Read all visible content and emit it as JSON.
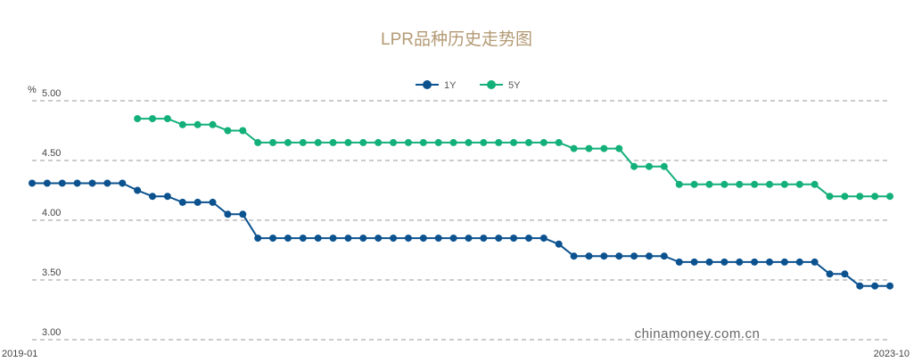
{
  "chart_data": {
    "type": "line",
    "title": "LPR品种历史走势图",
    "ylabel": "%",
    "ylim": [
      3.0,
      5.0
    ],
    "yticks": [
      "3.00",
      "3.50",
      "4.00",
      "4.50",
      "5.00"
    ],
    "x_start_label": "2019-01",
    "x_end_label": "2023-10",
    "grid": true,
    "legend_position": "top-center",
    "watermark": "chinamoney.com.cn",
    "x_count": 58,
    "series": [
      {
        "name": "1Y",
        "color": "#0b528f",
        "values": [
          4.31,
          4.31,
          4.31,
          4.31,
          4.31,
          4.31,
          4.31,
          4.25,
          4.2,
          4.2,
          4.15,
          4.15,
          4.15,
          4.05,
          4.05,
          3.85,
          3.85,
          3.85,
          3.85,
          3.85,
          3.85,
          3.85,
          3.85,
          3.85,
          3.85,
          3.85,
          3.85,
          3.85,
          3.85,
          3.85,
          3.85,
          3.85,
          3.85,
          3.85,
          3.85,
          3.8,
          3.7,
          3.7,
          3.7,
          3.7,
          3.7,
          3.7,
          3.7,
          3.65,
          3.65,
          3.65,
          3.65,
          3.65,
          3.65,
          3.65,
          3.65,
          3.65,
          3.65,
          3.55,
          3.55,
          3.45,
          3.45,
          3.45
        ]
      },
      {
        "name": "5Y",
        "color": "#13b07a",
        "values": [
          null,
          null,
          null,
          null,
          null,
          null,
          null,
          4.85,
          4.85,
          4.85,
          4.8,
          4.8,
          4.8,
          4.75,
          4.75,
          4.65,
          4.65,
          4.65,
          4.65,
          4.65,
          4.65,
          4.65,
          4.65,
          4.65,
          4.65,
          4.65,
          4.65,
          4.65,
          4.65,
          4.65,
          4.65,
          4.65,
          4.65,
          4.65,
          4.65,
          4.65,
          4.6,
          4.6,
          4.6,
          4.6,
          4.45,
          4.45,
          4.45,
          4.3,
          4.3,
          4.3,
          4.3,
          4.3,
          4.3,
          4.3,
          4.3,
          4.3,
          4.3,
          4.2,
          4.2,
          4.2,
          4.2,
          4.2
        ]
      }
    ]
  }
}
